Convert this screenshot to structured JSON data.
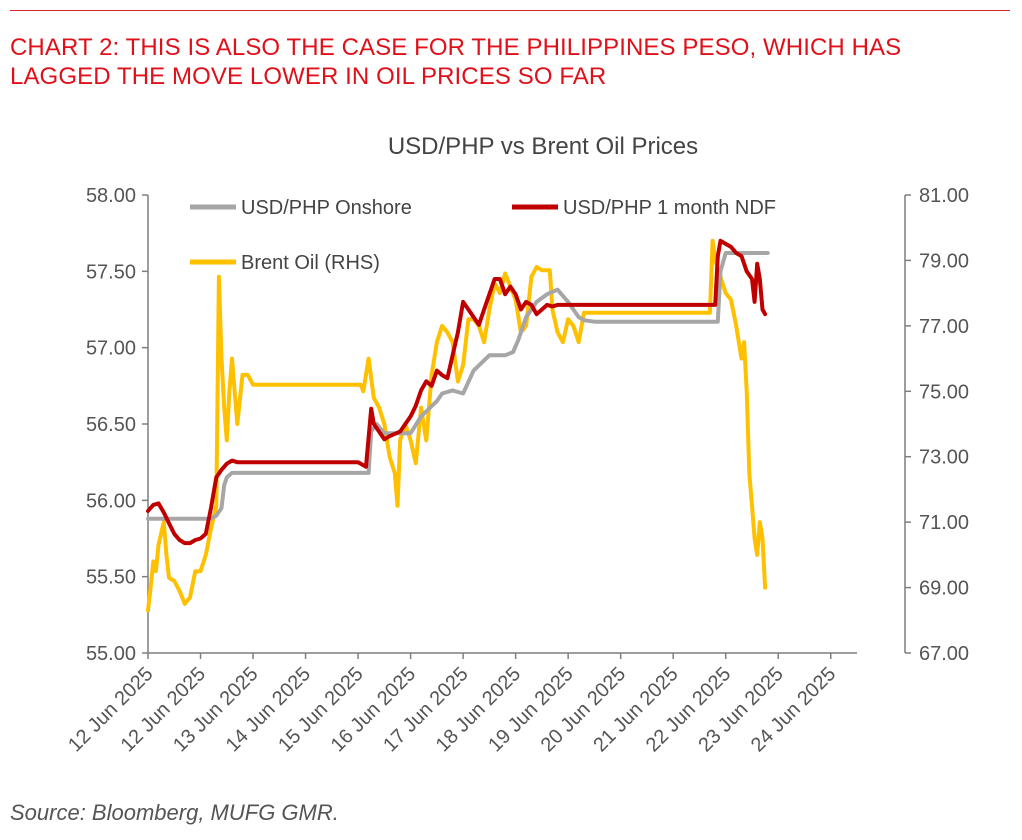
{
  "header": {
    "title_line1": "CHART 2: THIS IS ALSO THE CASE FOR THE PHILIPPINES PESO, WHICH HAS",
    "title_line2": "LAGGED THE MOVE LOWER IN OIL PRICES SO FAR"
  },
  "footer": {
    "source": "Source: Bloomberg, MUFG GMR."
  },
  "colors": {
    "headline": "#e0101a",
    "onshore": "#a6a6a6",
    "ndf": "#c00000",
    "brent": "#ffc000",
    "axis": "#7f7f7f"
  },
  "chart_data": {
    "type": "line",
    "title": "USD/PHP vs Brent Oil Prices",
    "x_ticks": [
      "12 Jun 2025",
      "12 Jun 2025",
      "13 Jun 2025",
      "14 Jun 2025",
      "15 Jun 2025",
      "16 Jun 2025",
      "17 Jun 2025",
      "18 Jun 2025",
      "19 Jun 2025",
      "20 Jun 2025",
      "21 Jun 2025",
      "22 Jun 2025",
      "23 Jun 2025",
      "24 Jun 2025"
    ],
    "y_left": {
      "ylim": [
        55.0,
        58.0
      ],
      "ticks": [
        "55.00",
        "55.50",
        "56.00",
        "56.50",
        "57.00",
        "57.50",
        "58.00"
      ]
    },
    "y_right": {
      "ylim": [
        67.0,
        81.0
      ],
      "ticks": [
        "67.00",
        "69.00",
        "71.00",
        "73.00",
        "75.00",
        "77.00",
        "79.00",
        "81.00"
      ]
    },
    "legend": {
      "placement": "top-inside",
      "entries": [
        "USD/PHP Onshore",
        "USD/PHP 1 month NDF",
        "Brent Oil (RHS)"
      ]
    },
    "series": [
      {
        "name": "USD/PHP Onshore",
        "axis": "left",
        "x": [
          0,
          0.2,
          0.5,
          0.9,
          1.2,
          1.3,
          1.4,
          1.45,
          1.5,
          1.6,
          1.7,
          1.8,
          1.85,
          2.0,
          2.5,
          3.0,
          3.5,
          4.0,
          4.2,
          4.25,
          4.35,
          4.5,
          4.8,
          5.0,
          5.2,
          5.5,
          5.6,
          5.8,
          6.0,
          6.2,
          6.5,
          6.8,
          6.95,
          7.05,
          7.2,
          7.4,
          7.6,
          7.8,
          8.0,
          8.2,
          8.3,
          8.5,
          8.8,
          9.0,
          9.5,
          10.0,
          10.5,
          10.85,
          10.9,
          11.0,
          11.1,
          11.2,
          11.3,
          11.5,
          11.75,
          11.8
        ],
        "values": [
          55.88,
          55.88,
          55.88,
          55.88,
          55.88,
          55.9,
          55.95,
          56.1,
          56.15,
          56.18,
          56.18,
          56.18,
          56.18,
          56.18,
          56.18,
          56.18,
          56.18,
          56.18,
          56.18,
          56.45,
          56.5,
          56.44,
          56.44,
          56.44,
          56.55,
          56.65,
          56.7,
          56.72,
          56.7,
          56.85,
          56.95,
          56.95,
          56.97,
          57.05,
          57.2,
          57.3,
          57.35,
          57.38,
          57.3,
          57.2,
          57.18,
          57.17,
          57.17,
          57.17,
          57.17,
          57.17,
          57.17,
          57.17,
          57.5,
          57.62,
          57.62,
          57.62,
          57.62,
          57.62,
          57.62,
          57.62
        ]
      },
      {
        "name": "USD/PHP 1 month NDF",
        "axis": "left",
        "x": [
          0,
          0.1,
          0.2,
          0.3,
          0.4,
          0.5,
          0.6,
          0.7,
          0.8,
          0.9,
          1.0,
          1.1,
          1.2,
          1.3,
          1.4,
          1.5,
          1.6,
          1.7,
          1.8,
          1.9,
          2.0,
          2.5,
          3.0,
          3.5,
          4.0,
          4.15,
          4.25,
          4.3,
          4.4,
          4.5,
          4.6,
          4.8,
          5.0,
          5.1,
          5.2,
          5.3,
          5.4,
          5.5,
          5.6,
          5.7,
          5.8,
          5.9,
          6.0,
          6.1,
          6.2,
          6.3,
          6.4,
          6.5,
          6.6,
          6.7,
          6.8,
          6.9,
          7.0,
          7.1,
          7.2,
          7.3,
          7.4,
          7.5,
          7.6,
          7.7,
          7.8,
          7.9,
          8.0,
          8.1,
          8.2,
          8.3,
          8.4,
          8.5,
          8.6,
          8.7,
          8.8,
          9.0,
          9.5,
          10.0,
          10.5,
          10.8,
          10.85,
          10.9,
          11.0,
          11.1,
          11.2,
          11.3,
          11.4,
          11.5,
          11.55,
          11.6,
          11.65,
          11.7,
          11.75
        ],
        "values": [
          55.93,
          55.97,
          55.98,
          55.92,
          55.85,
          55.78,
          55.74,
          55.72,
          55.72,
          55.74,
          55.75,
          55.78,
          55.95,
          56.15,
          56.2,
          56.24,
          56.26,
          56.25,
          56.25,
          56.25,
          56.25,
          56.25,
          56.25,
          56.25,
          56.25,
          56.22,
          56.6,
          56.5,
          56.45,
          56.4,
          56.42,
          56.45,
          56.55,
          56.62,
          56.72,
          56.78,
          56.75,
          56.85,
          56.82,
          56.8,
          56.95,
          57.1,
          57.3,
          57.25,
          57.2,
          57.15,
          57.25,
          57.35,
          57.45,
          57.45,
          57.35,
          57.4,
          57.35,
          57.25,
          57.3,
          57.28,
          57.22,
          57.25,
          57.28,
          57.27,
          57.28,
          57.28,
          57.28,
          57.28,
          57.28,
          57.28,
          57.28,
          57.28,
          57.28,
          57.28,
          57.28,
          57.28,
          57.28,
          57.28,
          57.28,
          57.28,
          57.6,
          57.7,
          57.68,
          57.66,
          57.62,
          57.6,
          57.5,
          57.45,
          57.3,
          57.55,
          57.45,
          57.25,
          57.22
        ]
      },
      {
        "name": "Brent Oil (RHS)",
        "axis": "right",
        "x": [
          0,
          0.05,
          0.1,
          0.15,
          0.2,
          0.3,
          0.35,
          0.4,
          0.5,
          0.6,
          0.7,
          0.8,
          0.9,
          1.0,
          1.1,
          1.2,
          1.3,
          1.35,
          1.4,
          1.45,
          1.5,
          1.55,
          1.6,
          1.7,
          1.8,
          1.9,
          2.0,
          2.1,
          2.2,
          2.5,
          3.0,
          3.5,
          4.0,
          4.05,
          4.1,
          4.2,
          4.3,
          4.4,
          4.5,
          4.6,
          4.7,
          4.75,
          4.8,
          4.9,
          5.0,
          5.1,
          5.2,
          5.3,
          5.4,
          5.5,
          5.6,
          5.7,
          5.8,
          5.9,
          6.0,
          6.1,
          6.2,
          6.3,
          6.4,
          6.5,
          6.6,
          6.7,
          6.8,
          6.9,
          7.0,
          7.1,
          7.2,
          7.3,
          7.4,
          7.5,
          7.6,
          7.65,
          7.7,
          7.8,
          7.9,
          8.0,
          8.1,
          8.2,
          8.3,
          8.4,
          8.5,
          8.6,
          8.8,
          9.0,
          9.5,
          10.0,
          10.5,
          10.7,
          10.75,
          10.8,
          10.9,
          11.0,
          11.1,
          11.2,
          11.3,
          11.35,
          11.4,
          11.45,
          11.5,
          11.55,
          11.6,
          11.65,
          11.7,
          11.75
        ],
        "values": [
          68.3,
          69.0,
          69.8,
          69.5,
          70.3,
          71.0,
          70.0,
          69.3,
          69.2,
          68.9,
          68.5,
          68.7,
          69.5,
          69.5,
          70.0,
          70.8,
          71.5,
          78.5,
          76.0,
          74.5,
          73.5,
          75.0,
          76.0,
          74.0,
          75.5,
          75.5,
          75.2,
          75.2,
          75.2,
          75.2,
          75.2,
          75.2,
          75.2,
          75.2,
          75.0,
          76.0,
          74.8,
          74.5,
          74.0,
          73.0,
          72.5,
          71.5,
          73.5,
          74.0,
          73.5,
          72.8,
          74.5,
          73.5,
          75.5,
          76.5,
          77.0,
          76.8,
          76.5,
          75.3,
          75.8,
          77.2,
          77.2,
          77.0,
          76.5,
          77.5,
          78.3,
          78.0,
          78.6,
          78.2,
          77.8,
          76.8,
          77.0,
          78.5,
          78.8,
          78.7,
          78.7,
          78.7,
          77.5,
          76.8,
          76.5,
          77.2,
          77.0,
          76.5,
          77.4,
          77.4,
          77.4,
          77.4,
          77.4,
          77.4,
          77.4,
          77.4,
          77.4,
          77.4,
          79.6,
          79.0,
          78.5,
          78.0,
          77.8,
          77.0,
          76.0,
          76.5,
          75.0,
          72.5,
          71.5,
          70.5,
          70.0,
          71.0,
          70.5,
          69.0
        ]
      }
    ]
  }
}
